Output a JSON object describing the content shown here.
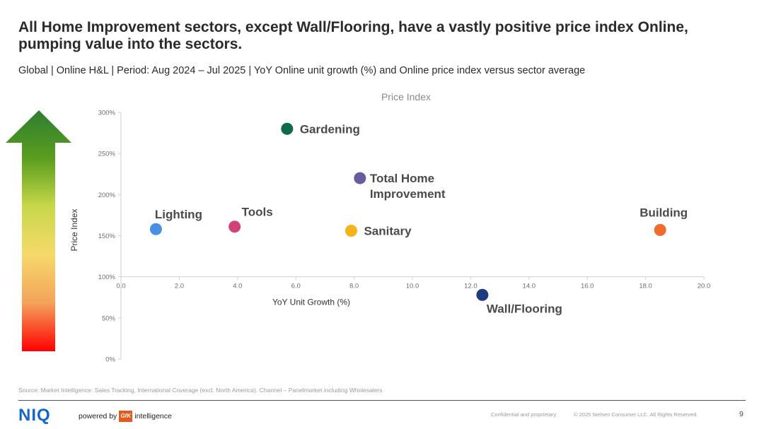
{
  "slide": {
    "title": "All Home Improvement sectors, except Wall/Flooring, have a vastly positive price index Online, pumping value into the sectors.",
    "subtitle": "Global | Online H&L | Period: Aug 2024 – Jul 2025 | YoY Online unit growth (%) and Online price index versus sector average"
  },
  "chart_data": {
    "type": "scatter",
    "title": "Price Index",
    "xlabel": "YoY Unit Growth (%)",
    "ylabel": "Price Index",
    "xlim": [
      0,
      20
    ],
    "ylim": [
      0,
      300
    ],
    "x_ticks": [
      0,
      2,
      4,
      6,
      8,
      10,
      12,
      14,
      16,
      18,
      20
    ],
    "x_tick_labels": [
      "0.0",
      "2.0",
      "4.0",
      "6.0",
      "8.0",
      "10.0",
      "12.0",
      "14.0",
      "16.0",
      "18.0",
      "20.0"
    ],
    "y_ticks": [
      0,
      50,
      100,
      150,
      200,
      250,
      300
    ],
    "y_tick_labels": [
      "0%",
      "50%",
      "100%",
      "150%",
      "200%",
      "250%",
      "300%"
    ],
    "x_axis_crosses_at": 100,
    "grid": false,
    "points": [
      {
        "label": "Gardening",
        "x": 5.7,
        "y": 280,
        "color": "#0f6b47",
        "label_pos": "right"
      },
      {
        "label": "Total Home Improvement",
        "label_lines": [
          "Total Home",
          "Improvement"
        ],
        "x": 8.2,
        "y": 220,
        "color": "#6a5a9e",
        "label_pos": "right-below"
      },
      {
        "label": "Lighting",
        "x": 1.2,
        "y": 158,
        "color": "#4a90e2",
        "label_pos": "above"
      },
      {
        "label": "Tools",
        "x": 3.9,
        "y": 161,
        "color": "#d0427a",
        "label_pos": "above"
      },
      {
        "label": "Sanitary",
        "x": 7.9,
        "y": 156,
        "color": "#f6b21b",
        "label_pos": "right"
      },
      {
        "label": "Building",
        "x": 18.5,
        "y": 157,
        "color": "#f06b2c",
        "label_pos": "above"
      },
      {
        "label": "Wall/Flooring",
        "x": 12.4,
        "y": 78,
        "color": "#1f3b80",
        "label_pos": "below"
      }
    ],
    "arrow_gradient": [
      "#2e7d32",
      "#5a9e1e",
      "#c8d84a",
      "#f6d96b",
      "#f4a25a",
      "#ff0000"
    ]
  },
  "footer": {
    "source": "Source: Market Intelligence: Sales Tracking, International Coverage (excl. North America). Channel – Panelmarket including Wholesalers",
    "logo": "NIQ",
    "powered_by": "powered by",
    "gfk": "GfK",
    "intelligence": "intelligence",
    "confidential": "Confidential and proprietary",
    "copyright": "© 2025 Nielsen Consumer LLC. All Rights Reserved.",
    "page_number": "9"
  }
}
